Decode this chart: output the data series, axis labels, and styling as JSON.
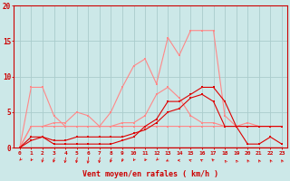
{
  "background_color": "#cce8e8",
  "grid_color": "#aacccc",
  "title": "Vent moyen/en rafales ( km/h )",
  "x_labels": [
    "0",
    "1",
    "2",
    "3",
    "4",
    "5",
    "6",
    "7",
    "8",
    "9",
    "10",
    "11",
    "12",
    "13",
    "14",
    "15",
    "16",
    "17",
    "18",
    "19",
    "20",
    "21",
    "22",
    "23"
  ],
  "xlim": [
    -0.5,
    23.5
  ],
  "ylim": [
    0,
    20
  ],
  "yticks": [
    0,
    5,
    10,
    15,
    20
  ],
  "series": [
    {
      "color": "#ff8888",
      "linewidth": 0.8,
      "markersize": 2.0,
      "values": [
        0.0,
        8.5,
        8.5,
        4.5,
        3.0,
        3.0,
        3.0,
        3.0,
        5.0,
        8.5,
        11.5,
        12.5,
        9.0,
        15.5,
        13.0,
        16.5,
        16.5,
        16.5,
        4.5,
        3.0,
        3.5,
        3.0,
        3.0,
        3.0
      ]
    },
    {
      "color": "#ff8888",
      "linewidth": 0.8,
      "markersize": 2.0,
      "values": [
        0.0,
        3.0,
        3.0,
        3.5,
        3.5,
        5.0,
        4.5,
        3.0,
        3.0,
        3.5,
        3.5,
        4.5,
        7.5,
        8.5,
        7.0,
        4.5,
        3.5,
        3.5,
        3.0,
        3.0,
        3.0,
        3.0,
        3.0,
        3.0
      ]
    },
    {
      "color": "#ff8888",
      "linewidth": 0.8,
      "markersize": 2.0,
      "values": [
        0.0,
        3.0,
        3.0,
        3.0,
        3.0,
        3.0,
        3.0,
        3.0,
        3.0,
        3.0,
        3.0,
        3.0,
        3.0,
        3.0,
        3.0,
        3.0,
        3.0,
        3.0,
        3.0,
        3.0,
        3.0,
        3.0,
        3.0,
        3.0
      ]
    },
    {
      "color": "#dd0000",
      "linewidth": 0.8,
      "markersize": 2.0,
      "values": [
        0.0,
        1.5,
        1.5,
        0.5,
        0.5,
        0.5,
        0.5,
        0.5,
        0.5,
        1.0,
        1.5,
        3.0,
        4.0,
        6.5,
        6.5,
        7.5,
        8.5,
        8.5,
        6.5,
        3.0,
        3.0,
        3.0,
        3.0,
        3.0
      ]
    },
    {
      "color": "#dd0000",
      "linewidth": 0.8,
      "markersize": 2.0,
      "values": [
        0.0,
        1.0,
        1.5,
        1.0,
        1.0,
        1.5,
        1.5,
        1.5,
        1.5,
        1.5,
        2.0,
        2.5,
        3.5,
        5.0,
        5.5,
        7.0,
        7.5,
        6.5,
        3.0,
        3.0,
        0.5,
        0.5,
        1.5,
        0.5
      ]
    },
    {
      "color": "#dd0000",
      "linewidth": 1.0,
      "markersize": 0,
      "values": [
        0.0,
        0.0,
        0.0,
        0.0,
        0.0,
        0.0,
        0.0,
        0.0,
        0.0,
        0.0,
        0.0,
        0.0,
        0.0,
        0.0,
        0.0,
        0.0,
        0.0,
        0.0,
        0.0,
        0.0,
        0.0,
        0.0,
        0.0,
        0.0
      ]
    }
  ],
  "arrow_angles_deg": [
    200,
    210,
    230,
    230,
    240,
    240,
    250,
    240,
    230,
    220,
    210,
    210,
    200,
    190,
    180,
    175,
    170,
    165,
    160,
    155,
    150,
    150,
    150,
    150
  ],
  "arrow_color": "#dd0000",
  "axis_color": "#cc0000",
  "tick_color": "#cc0000",
  "label_color": "#cc0000"
}
